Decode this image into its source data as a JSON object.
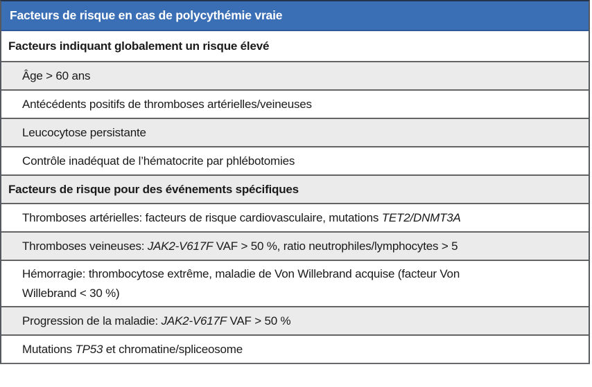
{
  "table": {
    "title": "Facteurs de risque en cas de polycythémie vraie",
    "colors": {
      "title_bg": "#3a6fb5",
      "title_text": "#ffffff",
      "title_divider": "#2e5a9b",
      "row_alt_bg": "#ebebeb",
      "row_bg": "#ffffff",
      "divider": "#636466",
      "outer_border": "#55585e",
      "text": "#1a1a1a"
    },
    "rows": [
      {
        "kind": "section",
        "shade": "white",
        "segments": [
          {
            "text": "Facteurs indiquant globalement un risque élevé",
            "italic": false
          }
        ]
      },
      {
        "kind": "item",
        "shade": "gray",
        "segments": [
          {
            "text": "Âge > 60 ans",
            "italic": false
          }
        ]
      },
      {
        "kind": "item",
        "shade": "white",
        "segments": [
          {
            "text": "Antécédents positifs de thromboses artérielles/veineuses",
            "italic": false
          }
        ]
      },
      {
        "kind": "item",
        "shade": "gray",
        "segments": [
          {
            "text": "Leucocytose persistante",
            "italic": false
          }
        ]
      },
      {
        "kind": "item",
        "shade": "white",
        "segments": [
          {
            "text": "Contrôle inadéquat de l’hématocrite par phlébotomies",
            "italic": false
          }
        ]
      },
      {
        "kind": "section",
        "shade": "gray",
        "segments": [
          {
            "text": "Facteurs de risque pour des événements spécifiques",
            "italic": false
          }
        ]
      },
      {
        "kind": "item",
        "shade": "white",
        "segments": [
          {
            "text": "Thromboses artérielles: facteurs de risque cardiovasculaire, mutations ",
            "italic": false
          },
          {
            "text": "TET2/DNMT3A",
            "italic": true
          }
        ]
      },
      {
        "kind": "item",
        "shade": "gray",
        "segments": [
          {
            "text": "Thromboses veineuses: ",
            "italic": false
          },
          {
            "text": "JAK2-V617F",
            "italic": true
          },
          {
            "text": " VAF > 50 %, ratio neutrophiles/lymphocytes > 5",
            "italic": false
          }
        ]
      },
      {
        "kind": "item",
        "shade": "white",
        "lines": 2,
        "segments": [
          {
            "text": "Hémorragie: thrombocytose extrême, maladie de Von Willebrand acquise (facteur Von",
            "italic": false
          },
          {
            "text": "Willebrand < 30 %)",
            "italic": false
          }
        ]
      },
      {
        "kind": "item",
        "shade": "gray",
        "segments": [
          {
            "text": "Progression de la maladie: ",
            "italic": false
          },
          {
            "text": "JAK2-V617F",
            "italic": true
          },
          {
            "text": " VAF > 50 %",
            "italic": false
          }
        ]
      },
      {
        "kind": "item",
        "shade": "white",
        "segments": [
          {
            "text": "Mutations ",
            "italic": false
          },
          {
            "text": "TP53",
            "italic": true
          },
          {
            "text": " et chromatine/spliceosome",
            "italic": false
          }
        ]
      }
    ]
  }
}
